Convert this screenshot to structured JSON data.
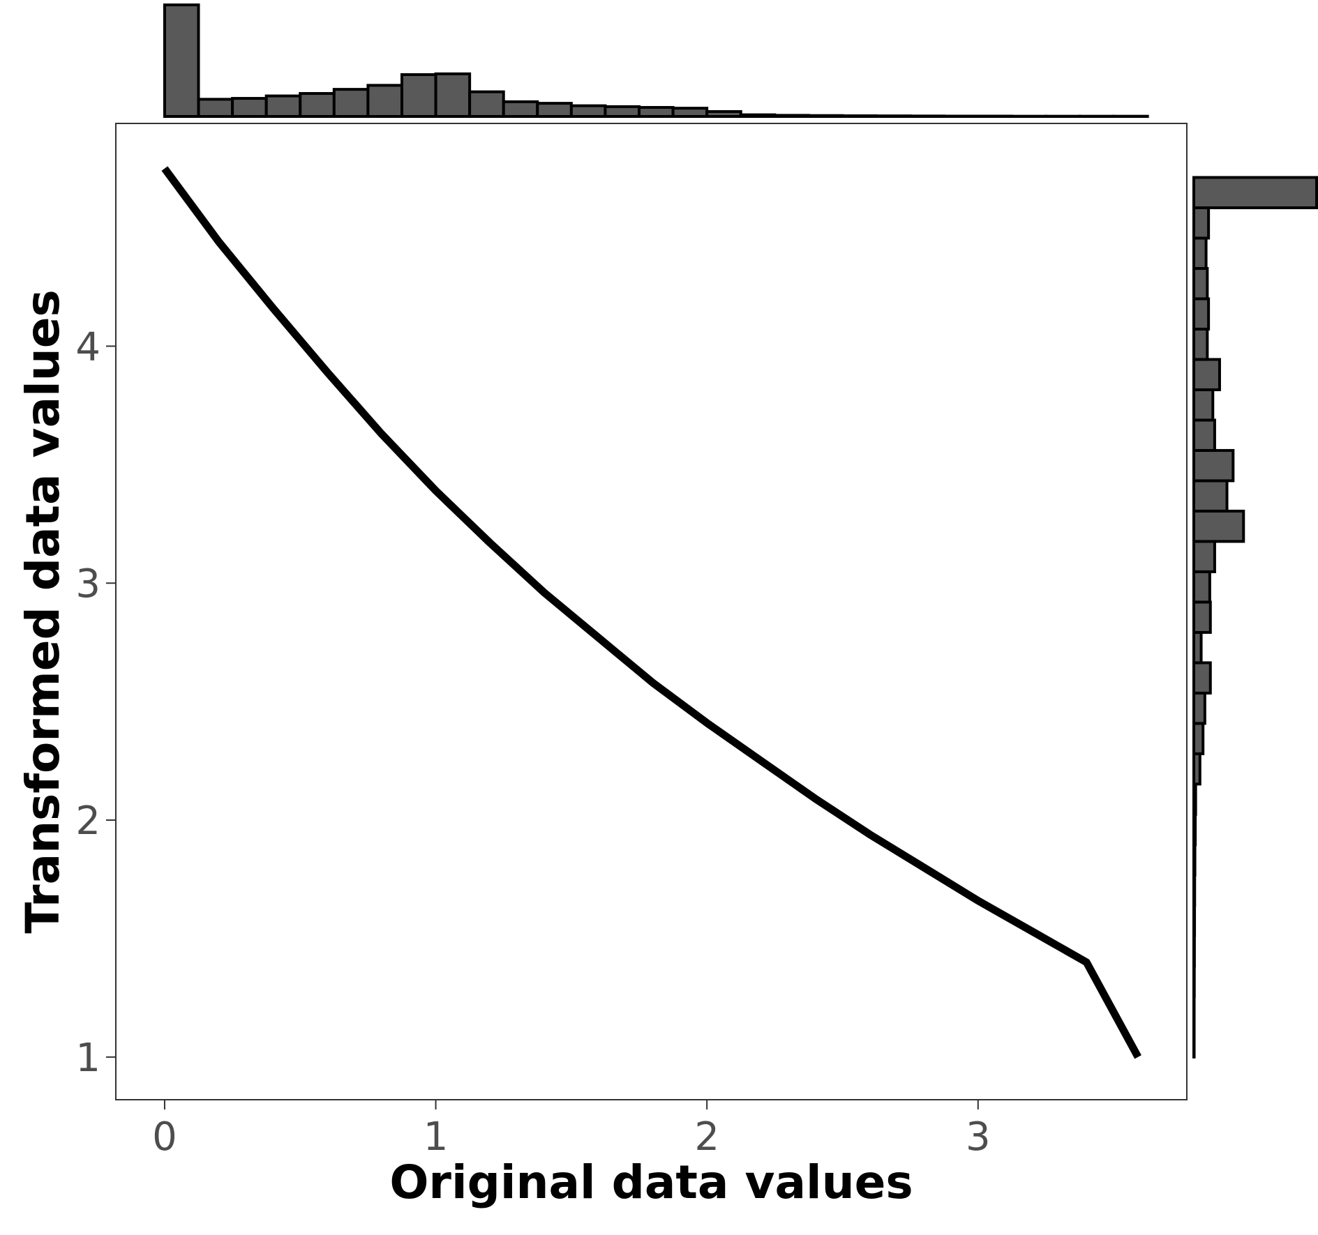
{
  "chart_data": {
    "type": "line",
    "xlabel": "Original data values",
    "ylabel": "Transformed data values",
    "xlim": [
      -0.18,
      3.77
    ],
    "ylim": [
      0.82,
      4.94
    ],
    "x_ticks": [
      0,
      1,
      2,
      3
    ],
    "y_ticks": [
      1,
      2,
      3,
      4
    ],
    "grid": false,
    "line_color": "#000000",
    "hist_fill": "#595959",
    "line": {
      "x": [
        0.0,
        0.2,
        0.4,
        0.6,
        0.8,
        1.0,
        1.2,
        1.4,
        1.6,
        1.8,
        2.0,
        2.2,
        2.4,
        2.6,
        2.8,
        3.0,
        3.2,
        3.4,
        3.59
      ],
      "y": [
        4.75,
        4.44,
        4.16,
        3.89,
        3.63,
        3.39,
        3.17,
        2.96,
        2.77,
        2.58,
        2.41,
        2.25,
        2.09,
        1.94,
        1.8,
        1.66,
        1.53,
        1.4,
        1.0
      ]
    },
    "x_histogram": {
      "bin_edges": [
        0.0,
        0.125,
        0.25,
        0.375,
        0.5,
        0.625,
        0.75,
        0.875,
        1.0,
        1.125,
        1.25,
        1.375,
        1.5,
        1.625,
        1.75,
        1.875,
        2.0,
        2.125,
        2.25,
        2.375,
        2.5,
        2.625,
        2.75,
        2.875,
        3.0,
        3.125,
        3.25,
        3.375,
        3.5,
        3.625
      ],
      "counts": [
        100,
        15.4,
        16.2,
        18.4,
        20.6,
        24.3,
        27.9,
        37.5,
        38.2,
        22.1,
        13.2,
        11.8,
        9.6,
        8.8,
        8.1,
        7.4,
        4.4,
        1.5,
        1.0,
        0.8,
        0.6,
        0.5,
        0.4,
        0.3,
        0.3,
        0.2,
        0.2,
        0.2,
        0.2
      ]
    },
    "y_histogram": {
      "bin_edges": [
        1.0,
        1.128,
        1.256,
        1.384,
        1.512,
        1.64,
        1.768,
        1.896,
        2.024,
        2.152,
        2.28,
        2.408,
        2.536,
        2.664,
        2.792,
        2.92,
        3.048,
        3.176,
        3.304,
        3.432,
        3.56,
        3.688,
        3.816,
        3.944,
        4.072,
        4.2,
        4.328,
        4.456,
        4.584,
        4.712
      ],
      "counts": [
        0.3,
        0.3,
        0.4,
        0.5,
        0.6,
        0.7,
        0.9,
        1.2,
        1.5,
        5.0,
        7.5,
        9.0,
        13.5,
        6.0,
        13.5,
        13.0,
        17.0,
        40.5,
        27.0,
        32.0,
        17.0,
        15.5,
        21.0,
        11.0,
        12.0,
        11.0,
        10.0,
        12.0,
        100
      ]
    }
  }
}
